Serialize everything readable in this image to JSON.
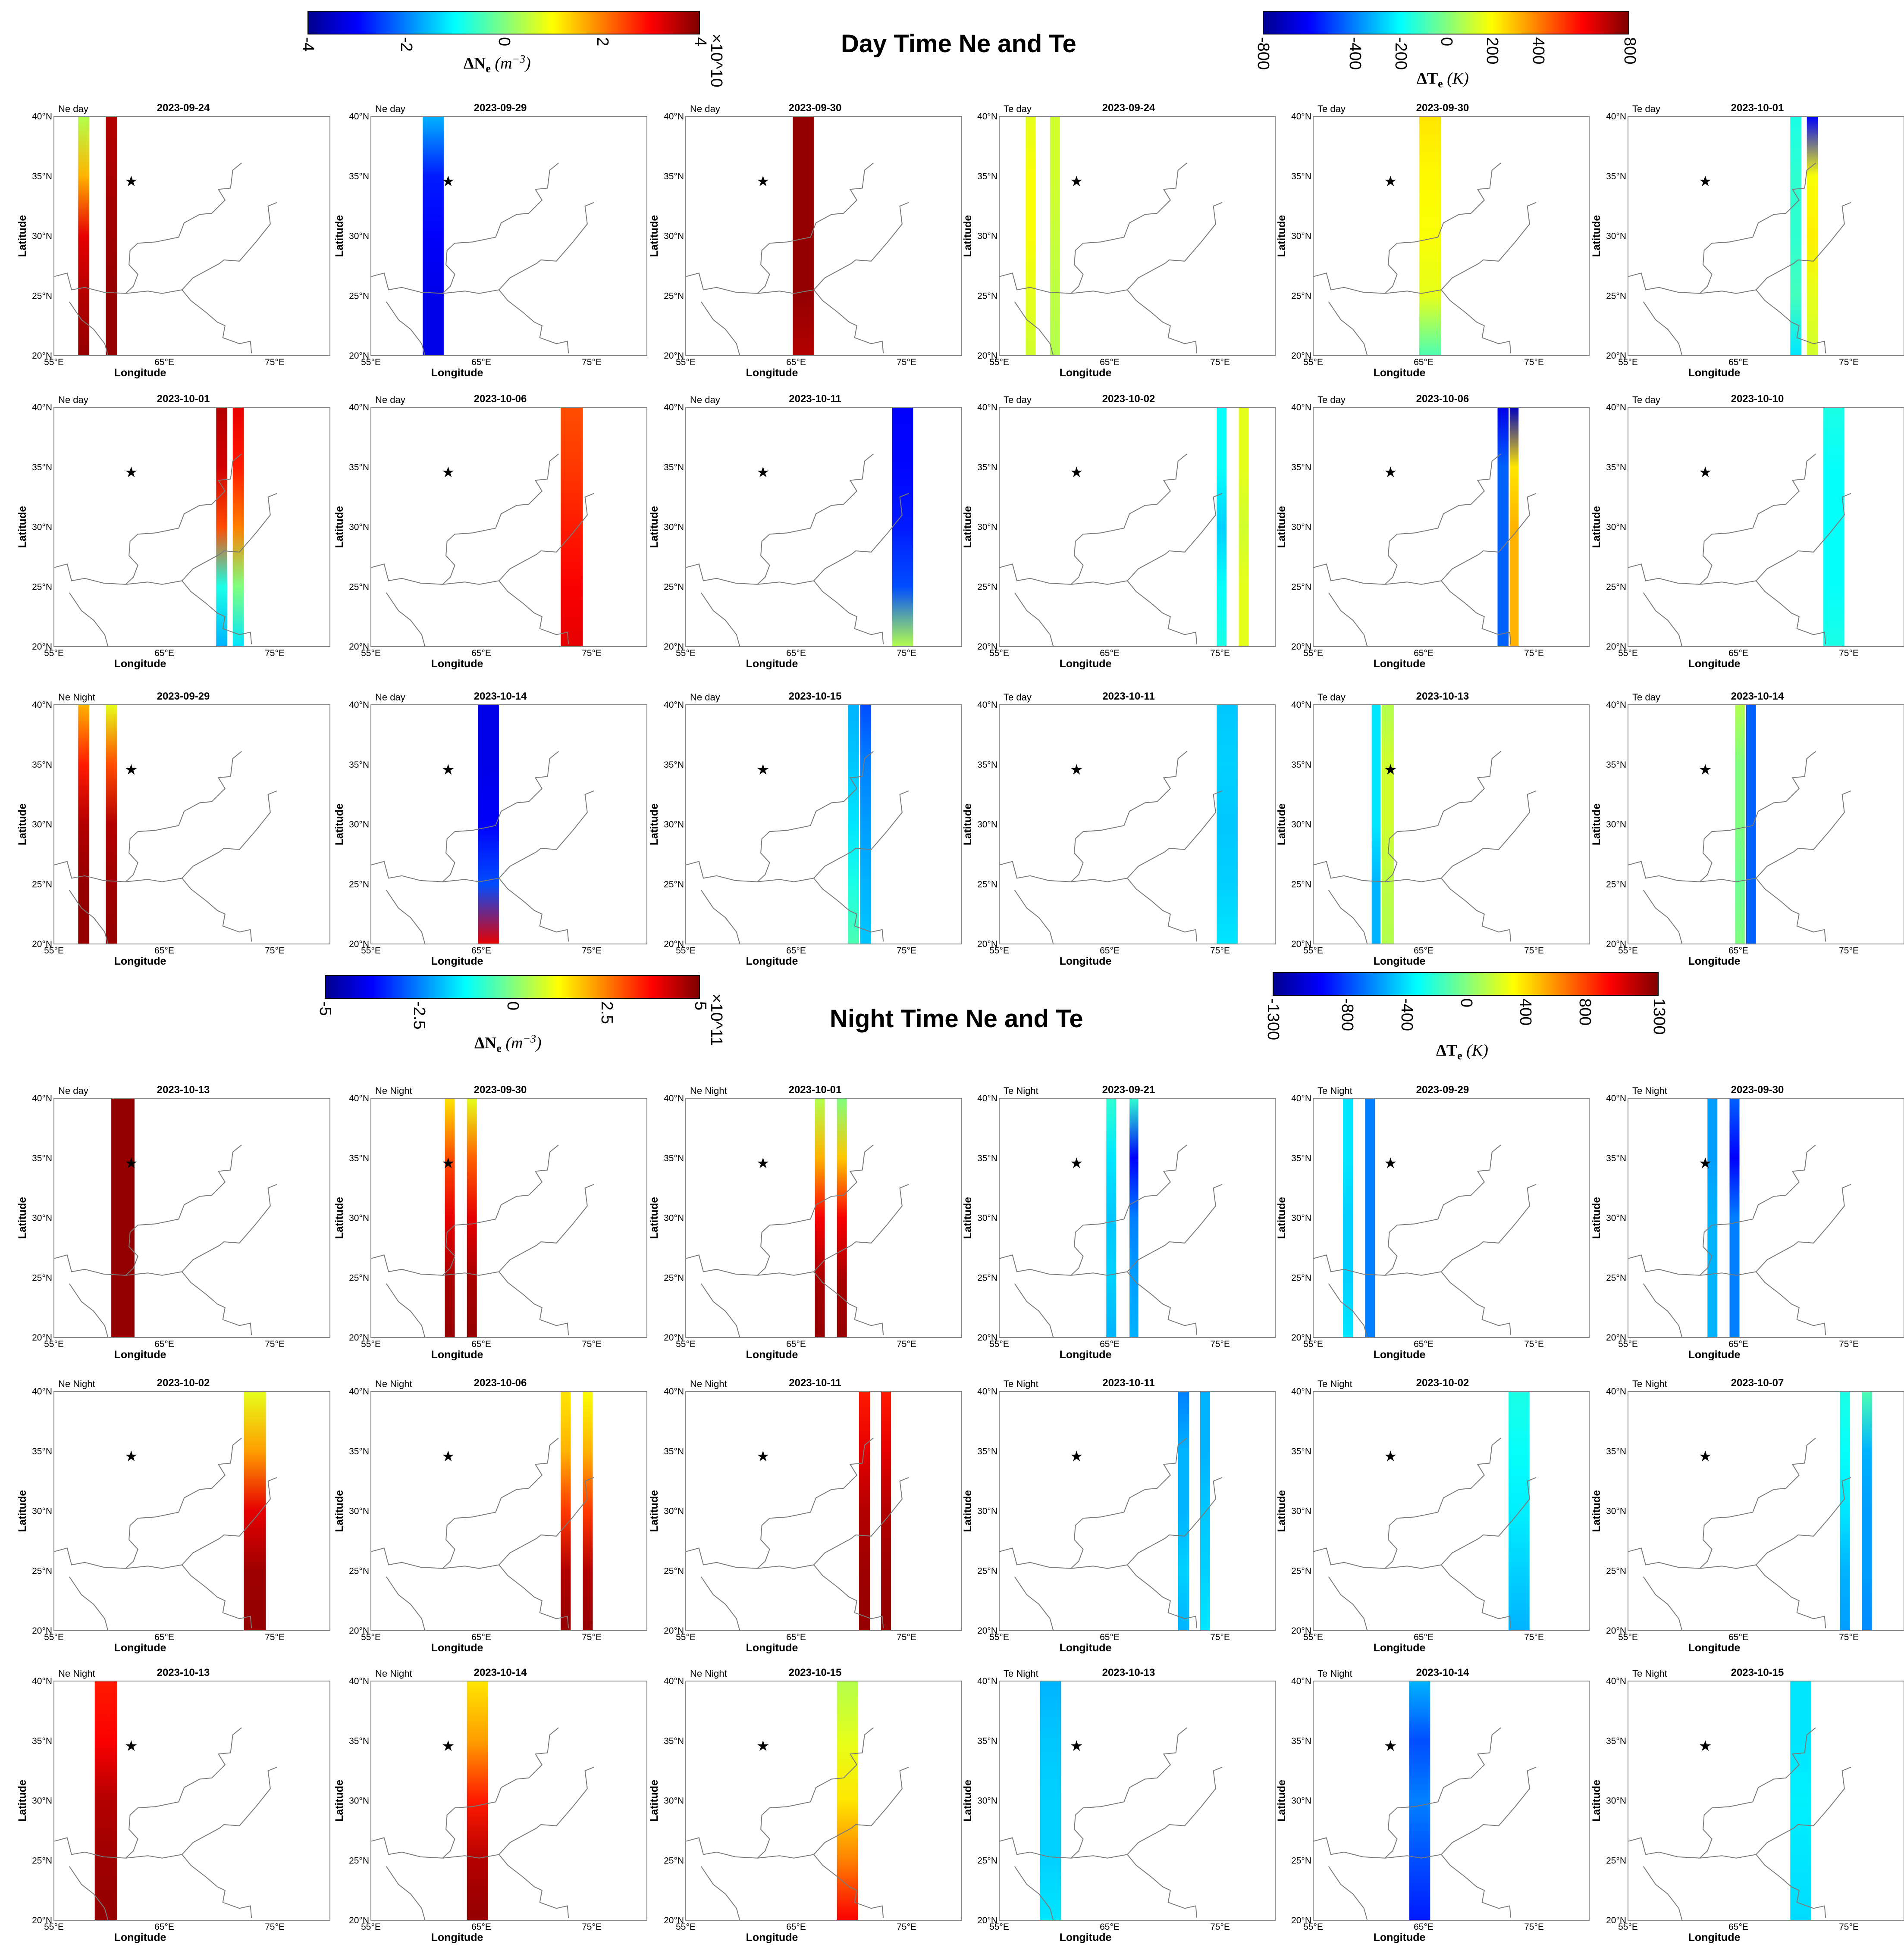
{
  "day": {
    "title": "Day Time Ne and Te",
    "ne_colorbar": {
      "label": "ΔN_e (m^-3)",
      "label_main": "ΔN",
      "label_sub": "e",
      "label_unit": "(m",
      "label_sup": "−3",
      "label_close": ")",
      "ticks": [
        "-4",
        "-2",
        "0",
        "2",
        "4"
      ],
      "min": -4,
      "max": 4,
      "exponent": "×10^10"
    },
    "te_colorbar": {
      "label_main": "ΔT",
      "label_sub": "e",
      "label_unit": "(K)",
      "ticks": [
        "-800",
        "-400",
        "-200",
        "0",
        "200",
        "400",
        "800"
      ],
      "tick_values": [
        -800,
        -400,
        -200,
        0,
        200,
        400,
        800
      ],
      "min": -800,
      "max": 800
    }
  },
  "night": {
    "title": "Night Time Ne and Te",
    "ne_colorbar": {
      "label_main": "ΔN",
      "label_sub": "e",
      "label_unit": "(m",
      "label_sup": "−3",
      "label_close": ")",
      "ticks": [
        "-5",
        "-2.5",
        "0",
        "2.5",
        "5"
      ],
      "min": -5,
      "max": 5,
      "exponent": "×10^11"
    },
    "te_colorbar": {
      "label_main": "ΔT",
      "label_sub": "e",
      "label_unit": "(K)",
      "ticks": [
        "-1300",
        "-800",
        "-400",
        "0",
        "400",
        "800",
        "1300"
      ],
      "tick_values": [
        -1300,
        -800,
        -400,
        0,
        400,
        800,
        1300
      ],
      "min": -1300,
      "max": 1300
    }
  },
  "axes": {
    "xlabel": "Longitude",
    "ylabel": "Latitude",
    "xticks": [
      "55°E",
      "65°E",
      "75°E"
    ],
    "yticks": [
      "20°N",
      "25°N",
      "30°N",
      "35°N",
      "40°N"
    ],
    "xlim": [
      55,
      80
    ],
    "ylim": [
      20,
      40
    ]
  },
  "epicenter_marker": {
    "symbol": "★",
    "lon": 62.0,
    "lat": 34.6
  },
  "colormap": [
    "#00008f",
    "#0000ff",
    "#0080ff",
    "#00ffff",
    "#80ff80",
    "#ffff00",
    "#ff8000",
    "#ff0000",
    "#800000"
  ],
  "chart_data": [
    {
      "type": "heatmap",
      "group": "day",
      "tag": "Ne day",
      "title": "2023-09-24",
      "strips": [
        {
          "lon": [
            57.2,
            58.2
          ],
          "vals": [
            0.55,
            0.7,
            0.9,
            0.95,
            0.98
          ]
        },
        {
          "lon": [
            59.7,
            60.7
          ],
          "vals": [
            0.95,
            0.96,
            0.97,
            0.98,
            0.98
          ]
        }
      ]
    },
    {
      "type": "heatmap",
      "group": "day",
      "tag": "Ne day",
      "title": "2023-09-29",
      "strips": [
        {
          "lon": [
            59.7,
            61.6
          ],
          "vals": [
            0.3,
            0.15,
            0.12,
            0.1,
            0.1
          ]
        }
      ]
    },
    {
      "type": "heatmap",
      "group": "day",
      "tag": "Ne day",
      "title": "2023-09-30",
      "strips": [
        {
          "lon": [
            64.7,
            66.6
          ],
          "vals": [
            0.98,
            0.98,
            0.98,
            0.98,
            0.95
          ]
        }
      ]
    },
    {
      "type": "heatmap",
      "group": "day",
      "tag": "Te day",
      "title": "2023-09-24",
      "strips": [
        {
          "lon": [
            57.4,
            58.3
          ],
          "vals": [
            0.6,
            0.62,
            0.62,
            0.6,
            0.58
          ]
        },
        {
          "lon": [
            59.6,
            60.5
          ],
          "vals": [
            0.58,
            0.58,
            0.57,
            0.56,
            0.55
          ]
        }
      ]
    },
    {
      "type": "heatmap",
      "group": "day",
      "tag": "Te day",
      "title": "2023-09-30",
      "strips": [
        {
          "lon": [
            64.6,
            66.6
          ],
          "vals": [
            0.65,
            0.63,
            0.62,
            0.6,
            0.45
          ]
        }
      ]
    },
    {
      "type": "heatmap",
      "group": "day",
      "tag": "Te day",
      "title": "2023-10-01",
      "strips": [
        {
          "lon": [
            69.7,
            70.7
          ],
          "vals": [
            0.4,
            0.42,
            0.42,
            0.44,
            0.35
          ]
        },
        {
          "lon": [
            71.2,
            72.2
          ],
          "vals": [
            0.12,
            0.62,
            0.64,
            0.6,
            0.58
          ]
        }
      ]
    },
    {
      "type": "heatmap",
      "group": "day",
      "tag": "Ne day",
      "title": "2023-10-01",
      "strips": [
        {
          "lon": [
            69.7,
            70.7
          ],
          "vals": [
            0.95,
            0.92,
            0.8,
            0.4,
            0.3
          ]
        },
        {
          "lon": [
            71.2,
            72.2
          ],
          "vals": [
            0.9,
            0.85,
            0.75,
            0.5,
            0.35
          ]
        }
      ]
    },
    {
      "type": "heatmap",
      "group": "day",
      "tag": "Ne day",
      "title": "2023-10-06",
      "strips": [
        {
          "lon": [
            72.2,
            74.2
          ],
          "vals": [
            0.8,
            0.82,
            0.85,
            0.88,
            0.9
          ]
        }
      ]
    },
    {
      "type": "heatmap",
      "group": "day",
      "tag": "Ne day",
      "title": "2023-10-11",
      "strips": [
        {
          "lon": [
            73.7,
            75.6
          ],
          "vals": [
            0.12,
            0.13,
            0.15,
            0.2,
            0.55
          ]
        }
      ]
    },
    {
      "type": "heatmap",
      "group": "day",
      "tag": "Te day",
      "title": "2023-10-02",
      "strips": [
        {
          "lon": [
            74.7,
            75.6
          ],
          "vals": [
            0.38,
            0.38,
            0.33,
            0.38,
            0.4
          ]
        },
        {
          "lon": [
            76.7,
            77.6
          ],
          "vals": [
            0.6,
            0.6,
            0.58,
            0.6,
            0.6
          ]
        }
      ]
    },
    {
      "type": "heatmap",
      "group": "day",
      "tag": "Te day",
      "title": "2023-10-06",
      "strips": [
        {
          "lon": [
            71.7,
            72.7
          ],
          "vals": [
            0.1,
            0.22,
            0.22,
            0.22,
            0.22
          ]
        },
        {
          "lon": [
            72.8,
            73.6
          ],
          "vals": [
            0.05,
            0.65,
            0.7,
            0.7,
            0.7
          ]
        }
      ]
    },
    {
      "type": "heatmap",
      "group": "day",
      "tag": "Te day",
      "title": "2023-10-10",
      "strips": [
        {
          "lon": [
            72.7,
            74.6
          ],
          "vals": [
            0.4,
            0.38,
            0.38,
            0.38,
            0.4
          ]
        }
      ]
    },
    {
      "type": "heatmap",
      "group": "day",
      "tag": "Ne Night",
      "title": "2023-09-29",
      "strips": [
        {
          "lon": [
            57.2,
            58.2
          ],
          "vals": [
            0.7,
            0.85,
            0.95,
            0.98,
            0.98
          ]
        },
        {
          "lon": [
            59.7,
            60.7
          ],
          "vals": [
            0.6,
            0.8,
            0.95,
            0.97,
            0.98
          ]
        }
      ]
    },
    {
      "type": "heatmap",
      "group": "day",
      "tag": "Ne day",
      "title": "2023-10-14",
      "strips": [
        {
          "lon": [
            64.7,
            66.6
          ],
          "vals": [
            0.1,
            0.1,
            0.12,
            0.2,
            0.9
          ]
        }
      ]
    },
    {
      "type": "heatmap",
      "group": "day",
      "tag": "Ne day",
      "title": "2023-10-15",
      "strips": [
        {
          "lon": [
            69.7,
            70.7
          ],
          "vals": [
            0.3,
            0.32,
            0.35,
            0.4,
            0.45
          ]
        },
        {
          "lon": [
            70.8,
            71.8
          ],
          "vals": [
            0.2,
            0.25,
            0.28,
            0.3,
            0.32
          ]
        }
      ]
    },
    {
      "type": "heatmap",
      "group": "day",
      "tag": "Te day",
      "title": "2023-10-11",
      "strips": [
        {
          "lon": [
            74.7,
            76.6
          ],
          "vals": [
            0.32,
            0.33,
            0.32,
            0.33,
            0.35
          ]
        }
      ]
    },
    {
      "type": "heatmap",
      "group": "day",
      "tag": "Te day",
      "title": "2023-10-13",
      "strips": [
        {
          "lon": [
            60.3,
            61.1
          ],
          "vals": [
            0.35,
            0.35,
            0.35,
            0.3,
            0.3
          ]
        },
        {
          "lon": [
            61.2,
            62.3
          ],
          "vals": [
            0.55,
            0.58,
            0.58,
            0.56,
            0.55
          ]
        }
      ]
    },
    {
      "type": "heatmap",
      "group": "day",
      "tag": "Te day",
      "title": "2023-10-14",
      "strips": [
        {
          "lon": [
            64.7,
            65.6
          ],
          "vals": [
            0.55,
            0.5,
            0.5,
            0.48,
            0.5
          ]
        },
        {
          "lon": [
            65.7,
            66.6
          ],
          "vals": [
            0.22,
            0.22,
            0.22,
            0.22,
            0.22
          ]
        }
      ]
    },
    {
      "type": "heatmap",
      "group": "night",
      "tag": "Ne day",
      "title": "2023-10-13",
      "strips": [
        {
          "lon": [
            60.2,
            62.3
          ],
          "vals": [
            0.98,
            0.98,
            0.98,
            0.98,
            0.98
          ]
        }
      ]
    },
    {
      "type": "heatmap",
      "group": "night",
      "tag": "Ne Night",
      "title": "2023-09-30",
      "strips": [
        {
          "lon": [
            61.7,
            62.6
          ],
          "vals": [
            0.65,
            0.8,
            0.9,
            0.96,
            0.98
          ]
        },
        {
          "lon": [
            63.7,
            64.6
          ],
          "vals": [
            0.6,
            0.78,
            0.9,
            0.96,
            0.98
          ]
        }
      ]
    },
    {
      "type": "heatmap",
      "group": "night",
      "tag": "Ne Night",
      "title": "2023-10-01",
      "strips": [
        {
          "lon": [
            66.7,
            67.6
          ],
          "vals": [
            0.55,
            0.7,
            0.88,
            0.96,
            0.98
          ]
        },
        {
          "lon": [
            68.7,
            69.6
          ],
          "vals": [
            0.5,
            0.68,
            0.88,
            0.96,
            0.98
          ]
        }
      ]
    },
    {
      "type": "heatmap",
      "group": "night",
      "tag": "Te Night",
      "title": "2023-09-21",
      "strips": [
        {
          "lon": [
            64.7,
            65.6
          ],
          "vals": [
            0.42,
            0.35,
            0.32,
            0.33,
            0.3
          ]
        },
        {
          "lon": [
            66.8,
            67.6
          ],
          "vals": [
            0.42,
            0.12,
            0.25,
            0.28,
            0.3
          ]
        }
      ]
    },
    {
      "type": "heatmap",
      "group": "night",
      "tag": "Te Night",
      "title": "2023-09-29",
      "strips": [
        {
          "lon": [
            57.7,
            58.6
          ],
          "vals": [
            0.35,
            0.35,
            0.33,
            0.33,
            0.35
          ]
        },
        {
          "lon": [
            59.7,
            60.6
          ],
          "vals": [
            0.25,
            0.25,
            0.25,
            0.25,
            0.25
          ]
        }
      ]
    },
    {
      "type": "heatmap",
      "group": "night",
      "tag": "Te Night",
      "title": "2023-09-30",
      "strips": [
        {
          "lon": [
            62.2,
            63.1
          ],
          "vals": [
            0.28,
            0.28,
            0.3,
            0.3,
            0.3
          ]
        },
        {
          "lon": [
            64.2,
            65.1
          ],
          "vals": [
            0.22,
            0.12,
            0.25,
            0.25,
            0.25
          ]
        }
      ]
    },
    {
      "type": "heatmap",
      "group": "night",
      "tag": "Ne Night",
      "title": "2023-10-02",
      "strips": [
        {
          "lon": [
            72.2,
            74.2
          ],
          "vals": [
            0.6,
            0.72,
            0.9,
            0.97,
            0.98
          ]
        }
      ]
    },
    {
      "type": "heatmap",
      "group": "night",
      "tag": "Ne Night",
      "title": "2023-10-06",
      "strips": [
        {
          "lon": [
            72.2,
            73.1
          ],
          "vals": [
            0.65,
            0.7,
            0.82,
            0.95,
            0.98
          ]
        },
        {
          "lon": [
            74.2,
            75.1
          ],
          "vals": [
            0.62,
            0.7,
            0.82,
            0.95,
            0.98
          ]
        }
      ]
    },
    {
      "type": "heatmap",
      "group": "night",
      "tag": "Ne Night",
      "title": "2023-10-11",
      "strips": [
        {
          "lon": [
            70.7,
            71.7
          ],
          "vals": [
            0.85,
            0.9,
            0.95,
            0.97,
            0.98
          ]
        },
        {
          "lon": [
            72.7,
            73.6
          ],
          "vals": [
            0.85,
            0.9,
            0.95,
            0.97,
            0.98
          ]
        }
      ]
    },
    {
      "type": "heatmap",
      "group": "night",
      "tag": "Te Night",
      "title": "2023-10-11",
      "strips": [
        {
          "lon": [
            71.2,
            72.2
          ],
          "vals": [
            0.25,
            0.3,
            0.3,
            0.33,
            0.3
          ]
        },
        {
          "lon": [
            73.2,
            74.1
          ],
          "vals": [
            0.3,
            0.3,
            0.32,
            0.33,
            0.35
          ]
        }
      ]
    },
    {
      "type": "heatmap",
      "group": "night",
      "tag": "Te Night",
      "title": "2023-10-02",
      "strips": [
        {
          "lon": [
            72.7,
            74.6
          ],
          "vals": [
            0.4,
            0.38,
            0.36,
            0.33,
            0.3
          ]
        }
      ]
    },
    {
      "type": "heatmap",
      "group": "night",
      "tag": "Te Night",
      "title": "2023-10-07",
      "strips": [
        {
          "lon": [
            74.2,
            75.1
          ],
          "vals": [
            0.4,
            0.38,
            0.35,
            0.3,
            0.28
          ]
        },
        {
          "lon": [
            76.2,
            77.1
          ],
          "vals": [
            0.45,
            0.3,
            0.28,
            0.28,
            0.26
          ]
        }
      ]
    },
    {
      "type": "heatmap",
      "group": "night",
      "tag": "Ne Night",
      "title": "2023-10-13",
      "strips": [
        {
          "lon": [
            58.7,
            60.7
          ],
          "vals": [
            0.85,
            0.88,
            0.95,
            0.97,
            0.98
          ]
        }
      ]
    },
    {
      "type": "heatmap",
      "group": "night",
      "tag": "Ne Night",
      "title": "2023-10-14",
      "strips": [
        {
          "lon": [
            63.7,
            65.6
          ],
          "vals": [
            0.65,
            0.72,
            0.85,
            0.95,
            0.98
          ]
        }
      ]
    },
    {
      "type": "heatmap",
      "group": "night",
      "tag": "Ne Night",
      "title": "2023-10-15",
      "strips": [
        {
          "lon": [
            68.7,
            70.6
          ],
          "vals": [
            0.55,
            0.6,
            0.65,
            0.75,
            0.88
          ]
        }
      ]
    },
    {
      "type": "heatmap",
      "group": "night",
      "tag": "Te Night",
      "title": "2023-10-13",
      "strips": [
        {
          "lon": [
            58.7,
            60.6
          ],
          "vals": [
            0.3,
            0.32,
            0.33,
            0.33,
            0.35
          ]
        }
      ]
    },
    {
      "type": "heatmap",
      "group": "night",
      "tag": "Te Night",
      "title": "2023-10-14",
      "strips": [
        {
          "lon": [
            63.7,
            65.6
          ],
          "vals": [
            0.3,
            0.2,
            0.25,
            0.2,
            0.15
          ]
        }
      ]
    },
    {
      "type": "heatmap",
      "group": "night",
      "tag": "Te Night",
      "title": "2023-10-15",
      "strips": [
        {
          "lon": [
            69.7,
            71.6
          ],
          "vals": [
            0.35,
            0.35,
            0.36,
            0.35,
            0.34
          ]
        }
      ]
    }
  ]
}
